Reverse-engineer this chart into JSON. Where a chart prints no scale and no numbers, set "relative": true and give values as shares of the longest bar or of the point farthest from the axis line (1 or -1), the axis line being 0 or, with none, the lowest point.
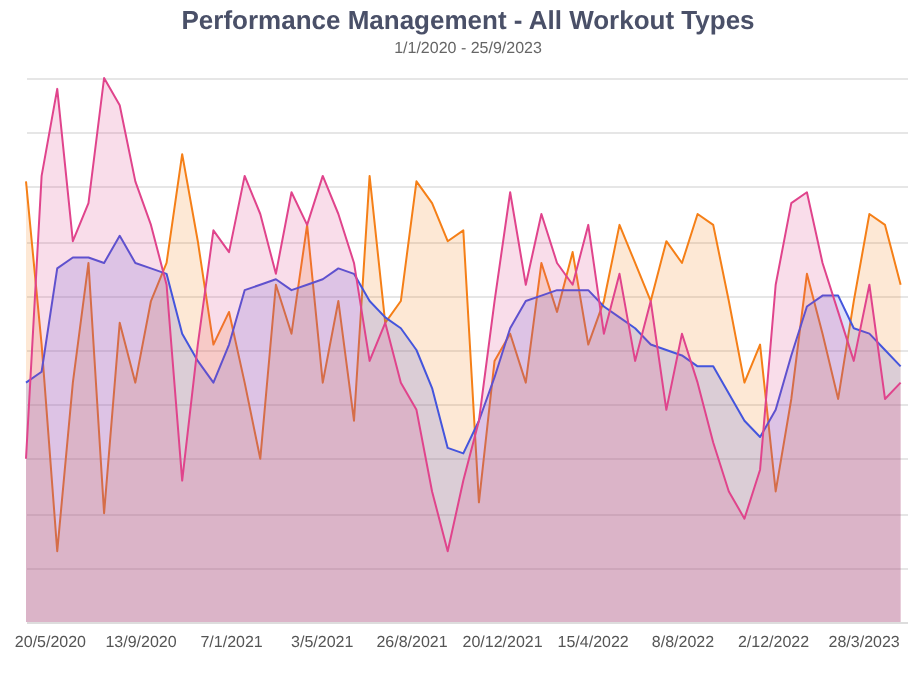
{
  "chart_data": {
    "type": "area",
    "title": "Performance Management - All Workout Types",
    "subtitle": "1/1/2020 - 25/9/2023",
    "relative": true,
    "grid": "y",
    "x": [
      "2020-04-20",
      "2020-05-10",
      "2020-05-30",
      "2020-06-19",
      "2020-07-09",
      "2020-07-29",
      "2020-08-18",
      "2020-09-07",
      "2020-09-27",
      "2020-10-17",
      "2020-11-06",
      "2020-11-26",
      "2020-12-16",
      "2021-01-05",
      "2021-01-25",
      "2021-02-14",
      "2021-03-06",
      "2021-03-26",
      "2021-04-15",
      "2021-05-05",
      "2021-05-25",
      "2021-06-14",
      "2021-07-04",
      "2021-07-24",
      "2021-08-13",
      "2021-09-02",
      "2021-09-22",
      "2021-10-12",
      "2021-11-01",
      "2021-11-21",
      "2021-12-11",
      "2021-12-31",
      "2022-01-20",
      "2022-02-09",
      "2022-03-01",
      "2022-03-21",
      "2022-04-10",
      "2022-04-30",
      "2022-05-20",
      "2022-06-09",
      "2022-06-29",
      "2022-07-19",
      "2022-08-08",
      "2022-08-28",
      "2022-09-17",
      "2022-10-07",
      "2022-10-27",
      "2022-11-16",
      "2022-12-06",
      "2022-12-26",
      "2023-01-15",
      "2023-02-04",
      "2023-02-24",
      "2023-03-16",
      "2023-04-05",
      "2023-04-25",
      "2023-05-15"
    ],
    "xlim": [
      "2020-04-20",
      "2023-05-27"
    ],
    "xticks": [
      {
        "value": "2020-05-20",
        "label": "20/5/2020"
      },
      {
        "value": "2020-09-13",
        "label": "13/9/2020"
      },
      {
        "value": "2021-01-07",
        "label": "7/1/2021"
      },
      {
        "value": "2021-05-03",
        "label": "3/5/2021"
      },
      {
        "value": "2021-08-26",
        "label": "26/8/2021"
      },
      {
        "value": "2021-12-20",
        "label": "20/12/2021"
      },
      {
        "value": "2022-04-15",
        "label": "15/4/2022"
      },
      {
        "value": "2022-08-08",
        "label": "8/8/2022"
      },
      {
        "value": "2022-12-02",
        "label": "2/12/2022"
      },
      {
        "value": "2023-03-28",
        "label": "28/3/2023"
      }
    ],
    "series": [
      {
        "color": "#f57f17",
        "values": [
          0.81,
          0.51,
          0.13,
          0.44,
          0.66,
          0.2,
          0.55,
          0.44,
          0.59,
          0.66,
          0.86,
          0.7,
          0.51,
          0.57,
          0.44,
          0.3,
          0.62,
          0.53,
          0.73,
          0.44,
          0.59,
          0.37,
          0.82,
          0.55,
          0.59,
          0.81,
          0.77,
          0.7,
          0.72,
          0.22,
          0.48,
          0.53,
          0.44,
          0.66,
          0.57,
          0.68,
          0.51,
          0.59,
          0.73,
          0.66,
          0.59,
          0.7,
          0.66,
          0.75,
          0.73,
          0.59,
          0.44,
          0.51,
          0.24,
          0.41,
          0.64,
          0.53,
          0.41,
          0.59,
          0.75,
          0.73,
          0.62
        ]
      },
      {
        "color": "#4455dd",
        "values": [
          0.44,
          0.46,
          0.65,
          0.67,
          0.67,
          0.66,
          0.71,
          0.66,
          0.65,
          0.64,
          0.53,
          0.48,
          0.44,
          0.51,
          0.61,
          0.62,
          0.63,
          0.61,
          0.62,
          0.63,
          0.65,
          0.64,
          0.59,
          0.56,
          0.54,
          0.5,
          0.43,
          0.32,
          0.31,
          0.37,
          0.45,
          0.54,
          0.59,
          0.6,
          0.61,
          0.61,
          0.61,
          0.58,
          0.56,
          0.54,
          0.51,
          0.5,
          0.49,
          0.47,
          0.47,
          0.42,
          0.37,
          0.34,
          0.39,
          0.49,
          0.58,
          0.6,
          0.6,
          0.54,
          0.53,
          0.5,
          0.47
        ]
      },
      {
        "color": "#e0448c",
        "values": [
          0.3,
          0.82,
          0.98,
          0.7,
          0.77,
          1.0,
          0.95,
          0.81,
          0.73,
          0.62,
          0.26,
          0.51,
          0.72,
          0.68,
          0.82,
          0.75,
          0.64,
          0.79,
          0.73,
          0.82,
          0.75,
          0.66,
          0.48,
          0.55,
          0.44,
          0.39,
          0.24,
          0.13,
          0.26,
          0.37,
          0.59,
          0.79,
          0.62,
          0.75,
          0.66,
          0.62,
          0.73,
          0.53,
          0.64,
          0.48,
          0.59,
          0.39,
          0.53,
          0.44,
          0.33,
          0.24,
          0.19,
          0.28,
          0.62,
          0.77,
          0.79,
          0.66,
          0.57,
          0.48,
          0.62,
          0.41,
          0.44
        ]
      }
    ]
  }
}
